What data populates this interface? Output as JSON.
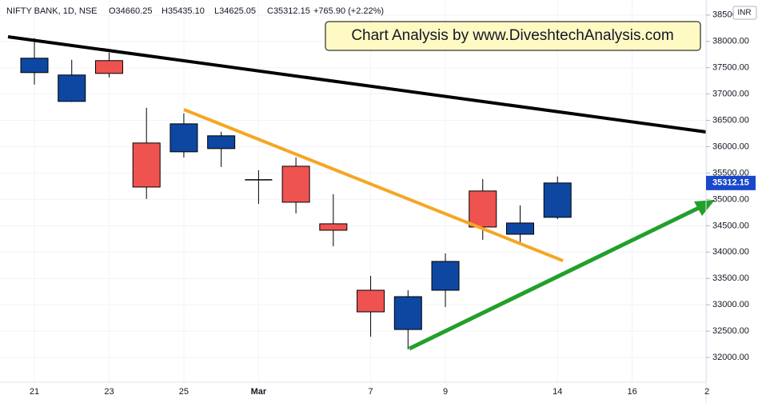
{
  "chart_data": {
    "type": "candlestick",
    "header": {
      "symbol": "NIFTY BANK, 1D, NSE",
      "open": "O34660.25",
      "high": "H35435.10",
      "low": "L34625.05",
      "close": "C35312.15",
      "change": "+765.90 (+2.22%)"
    },
    "annotation": "Chart Analysis by www.DiveshtechAnalysis.com",
    "currency": "INR",
    "categories": [
      "21",
      null,
      "23",
      null,
      "25",
      null,
      "Mar",
      null,
      null,
      "7",
      null,
      "9",
      null,
      null,
      "14",
      null,
      "16",
      null,
      "2"
    ],
    "series": [
      {
        "open": [
          37408,
          36861,
          37635,
          36071,
          35904,
          35965,
          35372,
          35630,
          34537,
          33276,
          32531,
          33276,
          35160,
          34339,
          34660.25,
          null,
          null,
          null,
          null
        ],
        "high": [
          38061,
          37651,
          37787,
          36739,
          36633,
          36284,
          35554,
          35797,
          35099,
          33549,
          33276,
          33974,
          35387,
          34886,
          35435.1,
          null,
          null,
          null,
          null
        ],
        "low": [
          37180,
          36850,
          37316,
          35008,
          35797,
          35615,
          34916,
          34734,
          34111,
          32395,
          32152,
          32957,
          34233,
          34157,
          34625.05,
          null,
          null,
          null,
          null
        ],
        "close": [
          37681,
          37362,
          37392,
          35235,
          36435,
          36208,
          35372,
          34947,
          34415,
          32866,
          33154,
          33823,
          34476,
          34552,
          35312.15,
          null,
          null,
          null,
          null
        ],
        "up_color": "#0d47a1",
        "down_color": "#ef5350",
        "doji_color": "#000000"
      }
    ],
    "ylim": [
      31530,
      38710
    ],
    "yticks": [
      {
        "value": 32000,
        "label": "32000.00"
      },
      {
        "value": 32500,
        "label": "32500.00"
      },
      {
        "value": 33000,
        "label": "33000.00"
      },
      {
        "value": 33500,
        "label": "33500.00"
      },
      {
        "value": 34000,
        "label": "34000.00"
      },
      {
        "value": 34500,
        "label": "34500.00"
      },
      {
        "value": 35000,
        "label": "35000.00"
      },
      {
        "value": 35500,
        "label": "35500.00"
      },
      {
        "value": 36000,
        "label": "36000.00"
      },
      {
        "value": 36500,
        "label": "36500.00"
      },
      {
        "value": 37000,
        "label": "37000.00"
      },
      {
        "value": 37500,
        "label": "37500.00"
      },
      {
        "value": 38000,
        "label": "38000.00"
      },
      {
        "value": 38500,
        "label": "38500.00"
      }
    ],
    "grid": true,
    "last_price_color": "#1848cc"
  }
}
